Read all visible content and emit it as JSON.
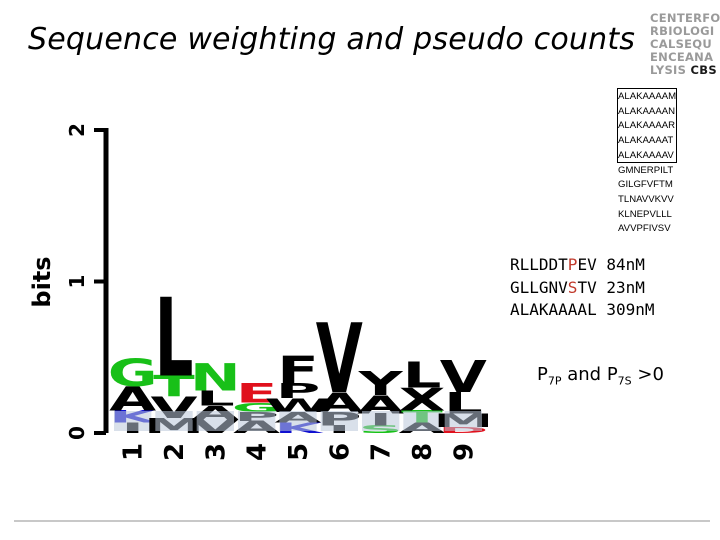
{
  "slide": {
    "title": "Sequence weighting and pseudo counts"
  },
  "institution_logo": {
    "lines": [
      "CENTERFO",
      "RBIOLOGI",
      "CALSEQU",
      "ENCEANA",
      "LYSIS",
      "CBS"
    ]
  },
  "sequence_list": [
    "ALAKAAAAM",
    "ALAKAAAAN",
    "ALAKAAAAR",
    "ALAKAAAAT",
    "ALAKAAAAV",
    "GMNERPILT",
    "GILGFVFTM",
    "TLNAVVKVV",
    "KLNEPVLLL",
    "AVVPFIVSV"
  ],
  "binders": [
    {
      "seq_pre": "RLLDDT",
      "seq_hl": "P",
      "seq_post": "EV",
      "affinity": "84nM"
    },
    {
      "seq_pre": "GLLGNV",
      "seq_hl": "S",
      "seq_post": "TV",
      "affinity": "23nM"
    },
    {
      "seq_pre": "ALAKAAAAL",
      "seq_hl": "",
      "seq_post": "",
      "affinity": "309nM"
    }
  ],
  "highlight_color": "#c0392b",
  "note": {
    "p7p_main": "P",
    "p7p_sub": "7P",
    "and": " and ",
    "p7s_main": "P",
    "p7s_sub": "7S",
    "tail": " >0"
  },
  "logo_chart": {
    "ylabel": "bits",
    "ytick_labels": [
      "0",
      "1",
      "2"
    ],
    "position_labels": [
      "1",
      "2",
      "3",
      "4",
      "5",
      "6",
      "7",
      "8",
      "9"
    ],
    "colors": {
      "G": "#18c018",
      "T": "#18c018",
      "N": "#18c018",
      "S": "#18c018",
      "L": "#000000",
      "V": "#000000",
      "A": "#000000",
      "I": "#000000",
      "M": "#000000",
      "F": "#000000",
      "Y": "#000000",
      "W": "#000000",
      "P": "#000000",
      "K": "#1010d0",
      "R": "#1010d0",
      "E": "#e0101c",
      "D": "#e0101c"
    },
    "columns": [
      [
        {
          "aa": "G",
          "h": 0.18
        },
        {
          "aa": "A",
          "h": 0.16
        },
        {
          "aa": "K",
          "h": 0.08
        },
        {
          "aa": "I",
          "h": 0.07
        }
      ],
      [
        {
          "aa": "L",
          "h": 0.52
        },
        {
          "aa": "T",
          "h": 0.14
        },
        {
          "aa": "V",
          "h": 0.14
        },
        {
          "aa": "M",
          "h": 0.1
        }
      ],
      [
        {
          "aa": "N",
          "h": 0.18
        },
        {
          "aa": "L",
          "h": 0.1
        },
        {
          "aa": "A",
          "h": 0.09
        },
        {
          "aa": "V",
          "h": 0.09
        }
      ],
      [
        {
          "aa": "E",
          "h": 0.13
        },
        {
          "aa": "G",
          "h": 0.06
        },
        {
          "aa": "P",
          "h": 0.06
        },
        {
          "aa": "A",
          "h": 0.08
        }
      ],
      [
        {
          "aa": "F",
          "h": 0.18
        },
        {
          "aa": "P",
          "h": 0.1
        },
        {
          "aa": "W",
          "h": 0.09
        },
        {
          "aa": "A",
          "h": 0.07
        },
        {
          "aa": "K",
          "h": 0.07
        }
      ],
      [
        {
          "aa": "V",
          "h": 0.46
        },
        {
          "aa": "A",
          "h": 0.13
        },
        {
          "aa": "P",
          "h": 0.09
        },
        {
          "aa": "I",
          "h": 0.05
        }
      ],
      [
        {
          "aa": "Y",
          "h": 0.16
        },
        {
          "aa": "A",
          "h": 0.12
        },
        {
          "aa": "I",
          "h": 0.08
        },
        {
          "aa": "S",
          "h": 0.05
        }
      ],
      [
        {
          "aa": "L",
          "h": 0.17
        },
        {
          "aa": "X",
          "h": 0.15
        },
        {
          "aa": "T",
          "h": 0.08
        },
        {
          "aa": "A",
          "h": 0.07
        }
      ],
      [
        {
          "aa": "V",
          "h": 0.21
        },
        {
          "aa": "L",
          "h": 0.14
        },
        {
          "aa": "M",
          "h": 0.09
        },
        {
          "aa": "D",
          "h": 0.04
        }
      ]
    ]
  }
}
